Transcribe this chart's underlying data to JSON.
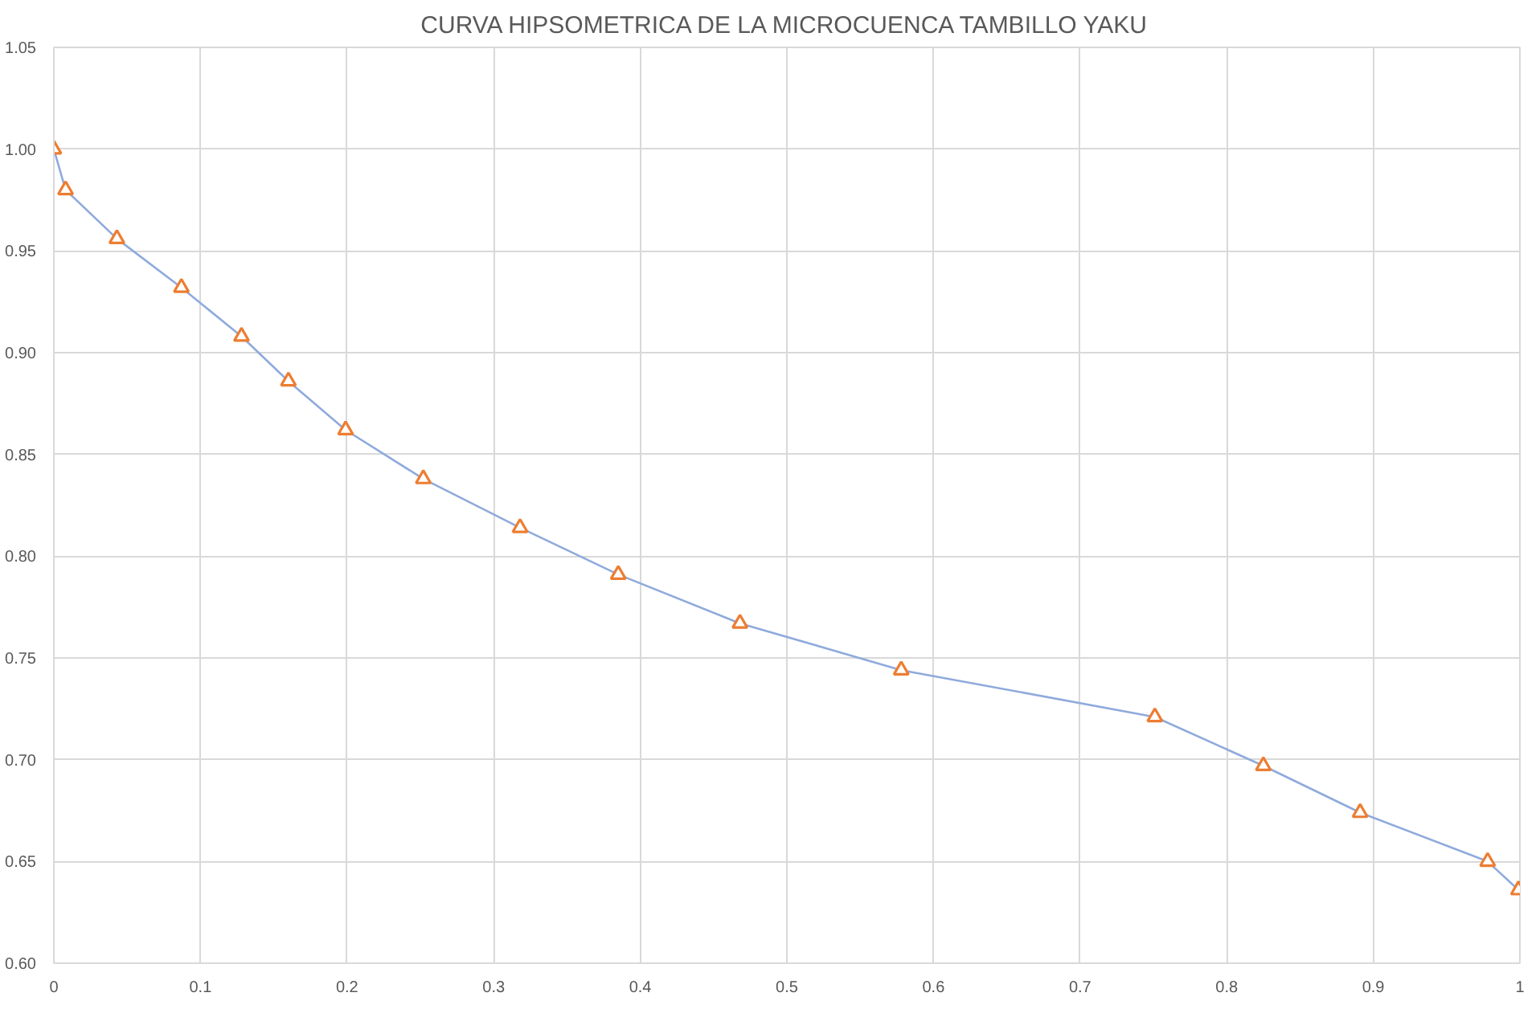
{
  "chart_data": {
    "type": "line",
    "title": "CURVA HIPSOMETRICA DE LA MICROCUENCA TAMBILLO YAKU",
    "x": [
      0,
      0.008,
      0.043,
      0.087,
      0.128,
      0.16,
      0.199,
      0.252,
      0.318,
      0.385,
      0.468,
      0.578,
      0.751,
      0.825,
      0.891,
      0.978,
      0.999
    ],
    "series": [
      {
        "color": "#8faadc",
        "colors": [
          "#ed7d31",
          "#ed7d31",
          "#ed7d31",
          "#ed7d31",
          "#ed7d31",
          "#ed7d31",
          "#ed7d31",
          "#ed7d31",
          "#ed7d31",
          "#ed7d31",
          "#ed7d31",
          "#ed7d31",
          "#ed7d31",
          "#ed7d31",
          "#ed7d31",
          "#ed7d31",
          "#ed7d31"
        ],
        "values": [
          1.0,
          0.98,
          0.956,
          0.932,
          0.908,
          0.886,
          0.862,
          0.838,
          0.814,
          0.791,
          0.767,
          0.744,
          0.721,
          0.697,
          0.674,
          0.65,
          0.636
        ]
      }
    ],
    "xlim": [
      0,
      1
    ],
    "ylim": [
      0.6,
      1.05
    ],
    "xticks": [
      0,
      0.1,
      0.2,
      0.3,
      0.4,
      0.5,
      0.6,
      0.7,
      0.8,
      0.9,
      1
    ],
    "yticks": [
      {
        "value": 0.6,
        "label": "0.60"
      },
      {
        "value": 0.65,
        "label": "0.65"
      },
      {
        "value": 0.7,
        "label": "0.70"
      },
      {
        "value": 0.75,
        "label": "0.75"
      },
      {
        "value": 0.8,
        "label": "0.80"
      },
      {
        "value": 0.85,
        "label": "0.85"
      },
      {
        "value": 0.9,
        "label": "0.90"
      },
      {
        "value": 0.95,
        "label": "0.95"
      },
      {
        "value": 1.0,
        "label": "1.00"
      },
      {
        "value": 1.05,
        "label": "1.05"
      }
    ],
    "grid": true,
    "marker": "triangle",
    "line_style": "solid"
  }
}
